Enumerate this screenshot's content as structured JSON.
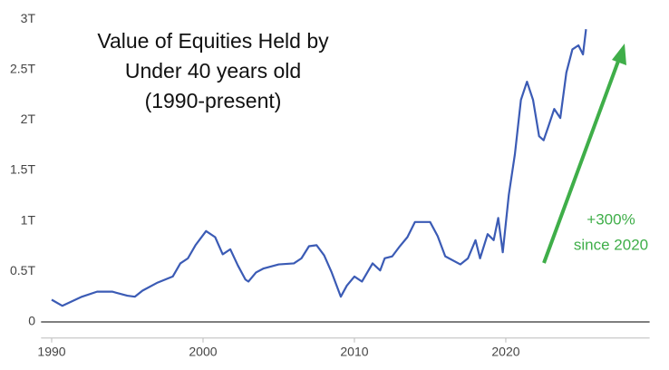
{
  "chart_data": {
    "type": "line",
    "title": [
      "Value of Equities Held by",
      "Under 40 years old",
      "(1990-present)"
    ],
    "annotation": [
      "+300%",
      "since 2020"
    ],
    "xlim": [
      1989.3,
      2029.5
    ],
    "xticks": [
      1990,
      2000,
      2010,
      2020
    ],
    "ylim": [
      -0.15,
      3.12
    ],
    "yticks": [
      0,
      {
        "value": 0.5,
        "label": "0.5T"
      },
      {
        "value": 1,
        "label": "1T"
      },
      {
        "value": 1.5,
        "label": "1.5T"
      },
      {
        "value": 2,
        "label": "2T"
      },
      {
        "value": 2.5,
        "label": "2.5T"
      },
      {
        "value": 3,
        "label": "3T"
      }
    ],
    "grid": false,
    "series": [
      {
        "color": "#3b5bb5",
        "x": [
          1990.0,
          1990.7,
          1992.0,
          1993.0,
          1994.0,
          1995.0,
          1995.5,
          1996.0,
          1997.0,
          1998.0,
          1998.5,
          1999.0,
          1999.5,
          2000.2,
          2000.8,
          2001.3,
          2001.8,
          2002.3,
          2002.8,
          2003.0,
          2003.5,
          2004.0,
          2005.0,
          2006.0,
          2006.5,
          2007.0,
          2007.5,
          2008.0,
          2008.5,
          2009.1,
          2009.5,
          2010.0,
          2010.5,
          2011.2,
          2011.7,
          2012.0,
          2012.5,
          2013.0,
          2013.5,
          2014.0,
          2015.0,
          2015.5,
          2016.0,
          2017.0,
          2017.5,
          2018.0,
          2018.3,
          2018.8,
          2019.2,
          2019.5,
          2019.8,
          2020.2,
          2020.6,
          2021.0,
          2021.4,
          2021.8,
          2022.2,
          2022.5,
          2022.8,
          2023.2,
          2023.6,
          2024.0,
          2024.4,
          2024.8,
          2025.1,
          2025.3
        ],
        "values": [
          0.22,
          0.16,
          0.25,
          0.3,
          0.3,
          0.26,
          0.25,
          0.31,
          0.39,
          0.45,
          0.58,
          0.63,
          0.76,
          0.9,
          0.84,
          0.67,
          0.72,
          0.56,
          0.42,
          0.4,
          0.49,
          0.53,
          0.57,
          0.58,
          0.63,
          0.75,
          0.76,
          0.66,
          0.49,
          0.25,
          0.36,
          0.45,
          0.4,
          0.58,
          0.51,
          0.63,
          0.65,
          0.75,
          0.84,
          0.99,
          0.99,
          0.85,
          0.65,
          0.57,
          0.63,
          0.81,
          0.63,
          0.87,
          0.81,
          1.03,
          0.69,
          1.26,
          1.66,
          2.2,
          2.38,
          2.2,
          1.84,
          1.8,
          1.93,
          2.11,
          2.02,
          2.47,
          2.7,
          2.74,
          2.65,
          2.9
        ]
      }
    ]
  }
}
